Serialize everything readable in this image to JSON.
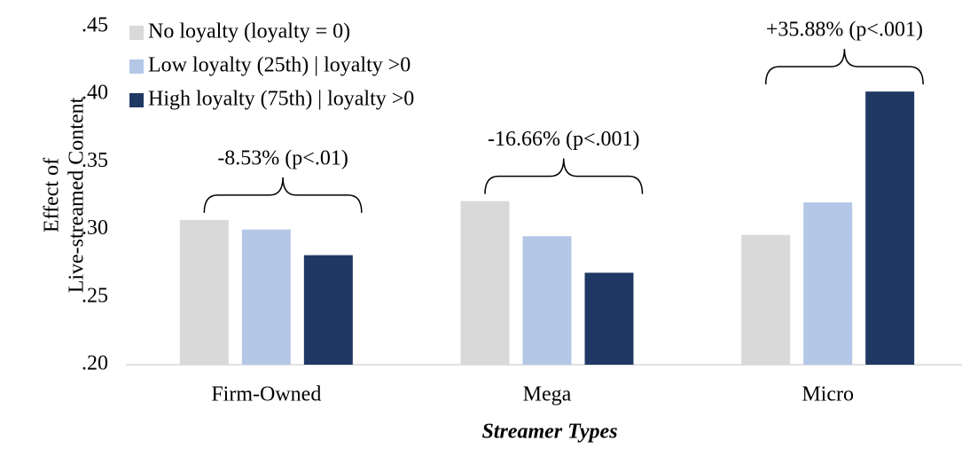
{
  "chart_data": {
    "type": "bar",
    "y_label": [
      "Effect of",
      "Live-streamed Content"
    ],
    "x_label": "Streamer Types",
    "categories": [
      "Firm-Owned",
      "Mega",
      "Micro"
    ],
    "series": [
      {
        "name": "No loyalty (loyalty = 0)",
        "color": "#d9d9d9",
        "values": [
          0.307,
          0.321,
          0.296
        ]
      },
      {
        "name": "Low loyalty (25th) | loyalty >0",
        "color": "#b4c7e7",
        "values": [
          0.3,
          0.295,
          0.32
        ]
      },
      {
        "name": "High loyalty (75th) | loyalty >0",
        "color": "#203864",
        "values": [
          0.281,
          0.268,
          0.402
        ]
      }
    ],
    "annotations": [
      "-8.53% (p<.01)",
      "-16.66% (p<.001)",
      "+35.88% (p<.001)"
    ],
    "ylim": [
      0.2,
      0.45
    ],
    "yticks": [
      {
        "value": 0.2,
        "label": ".20"
      },
      {
        "value": 0.25,
        "label": ".25"
      },
      {
        "value": 0.3,
        "label": ".30"
      },
      {
        "value": 0.35,
        "label": ".35"
      },
      {
        "value": 0.4,
        "label": ".40"
      },
      {
        "value": 0.45,
        "label": ".45"
      }
    ],
    "legend": "top-left"
  }
}
